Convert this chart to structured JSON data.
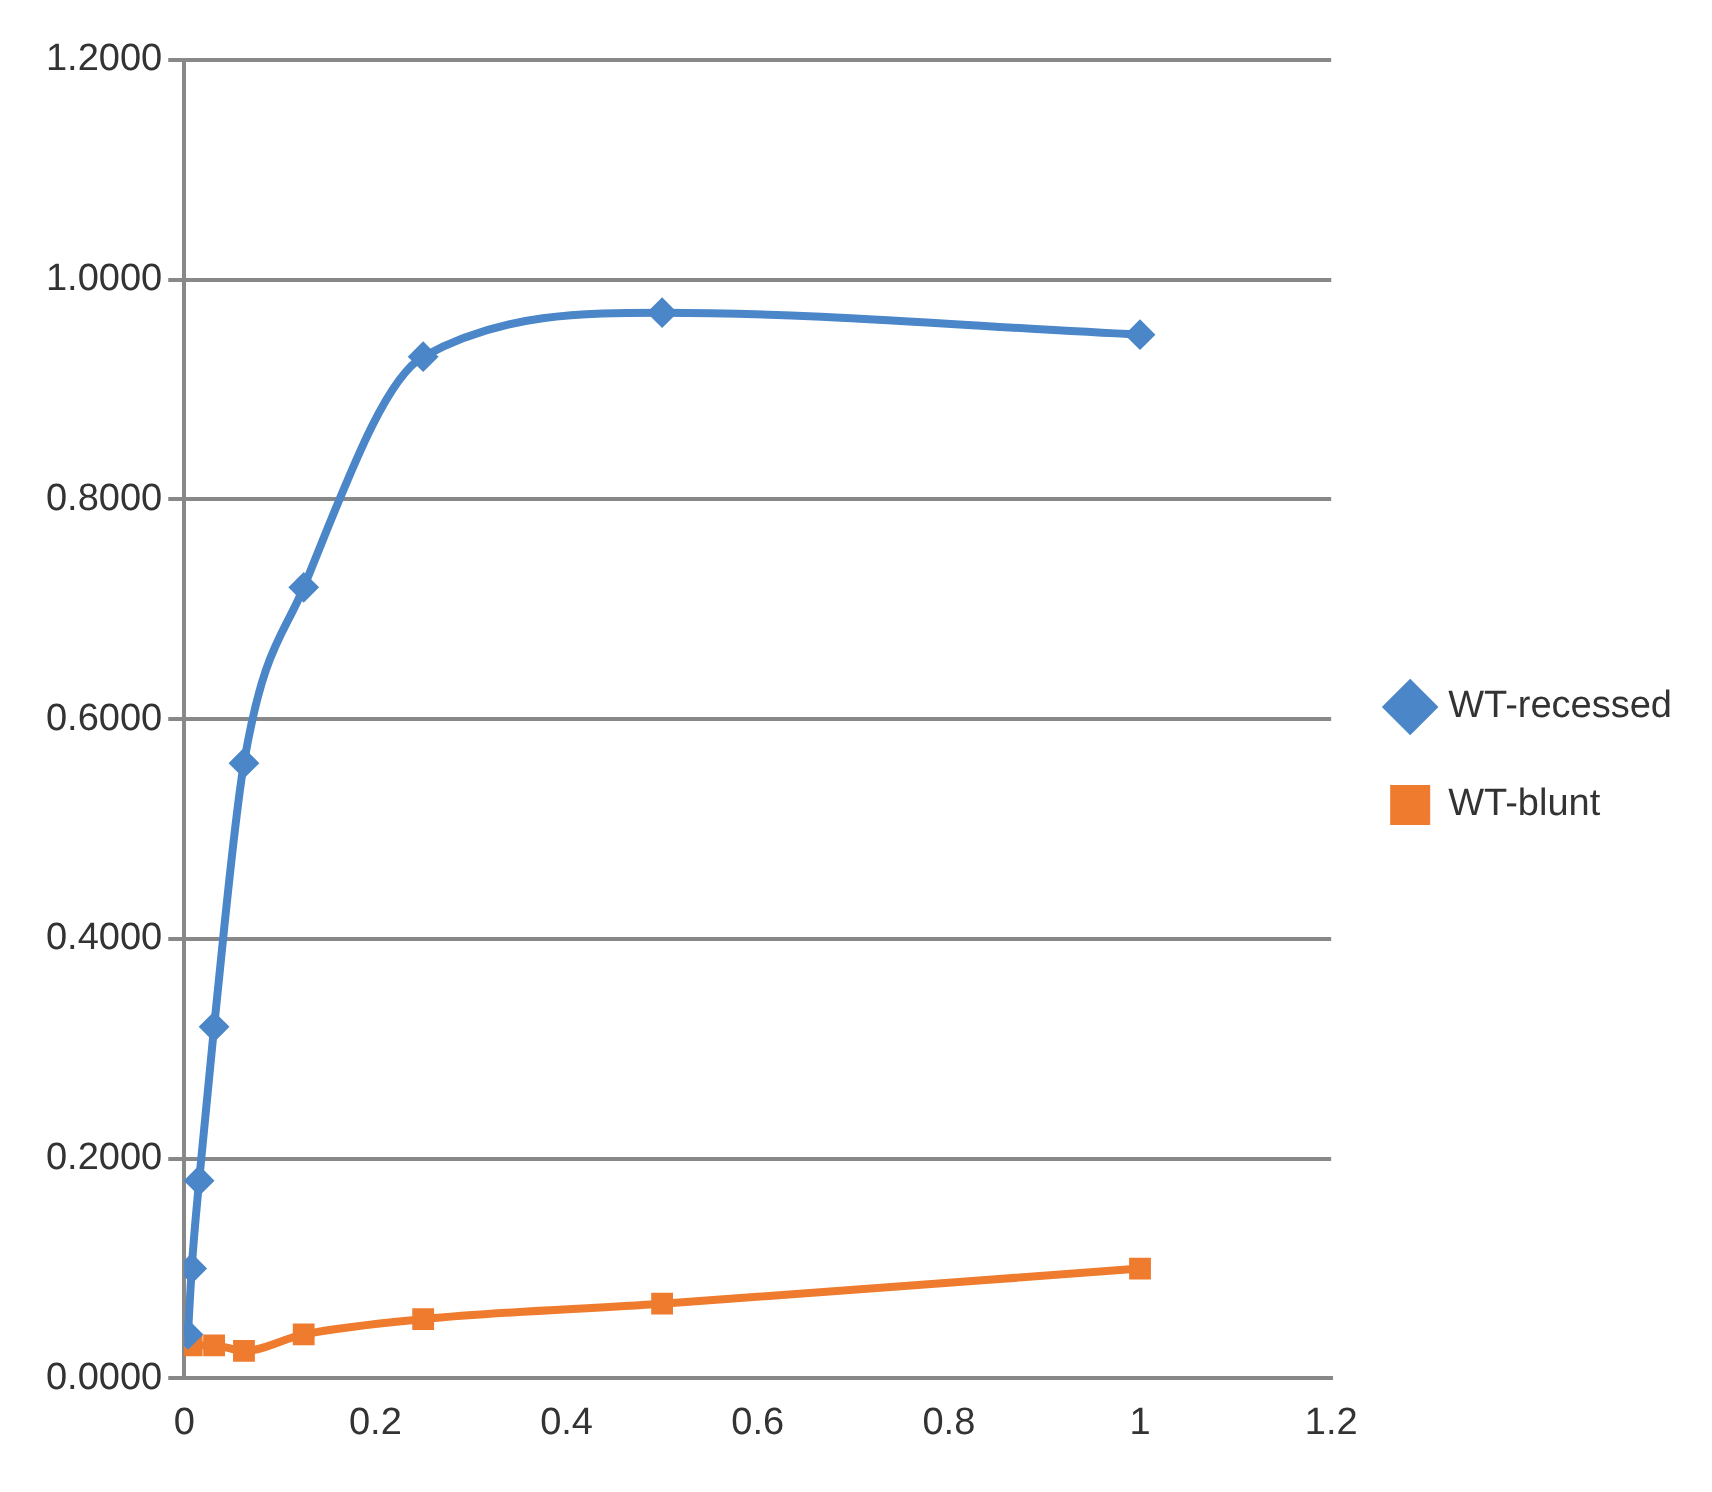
{
  "chart_data": {
    "type": "line",
    "x": [
      0.0039,
      0.0078,
      0.0156,
      0.03125,
      0.0625,
      0.125,
      0.25,
      0.5,
      1
    ],
    "series": [
      {
        "name": "WT-recessed",
        "color": "#4a86c8",
        "marker": "diamond",
        "values": [
          0.04,
          0.1,
          0.18,
          0.32,
          0.56,
          0.72,
          0.93,
          0.97,
          0.95
        ]
      },
      {
        "name": "WT-blunt",
        "color": "#ee7b2e",
        "marker": "square",
        "values": [
          null,
          0.03,
          null,
          0.03,
          0.025,
          0.04,
          0.054,
          0.068,
          0.1
        ]
      }
    ],
    "xlim": [
      0,
      1.2
    ],
    "xticks": [
      0,
      0.2,
      0.4,
      0.6,
      0.8,
      1,
      1.2
    ],
    "ylim": [
      0,
      1.2
    ],
    "yticks": [
      {
        "value": 0,
        "label": "0.0000"
      },
      {
        "value": 0.2,
        "label": "0.2000"
      },
      {
        "value": 0.4,
        "label": "0.4000"
      },
      {
        "value": 0.6,
        "label": "0.6000"
      },
      {
        "value": 0.8,
        "label": "0.8000"
      },
      {
        "value": 1,
        "label": "1.0000"
      },
      {
        "value": 1.2,
        "label": "1.2000"
      }
    ],
    "grid": "y",
    "legend": "right"
  }
}
